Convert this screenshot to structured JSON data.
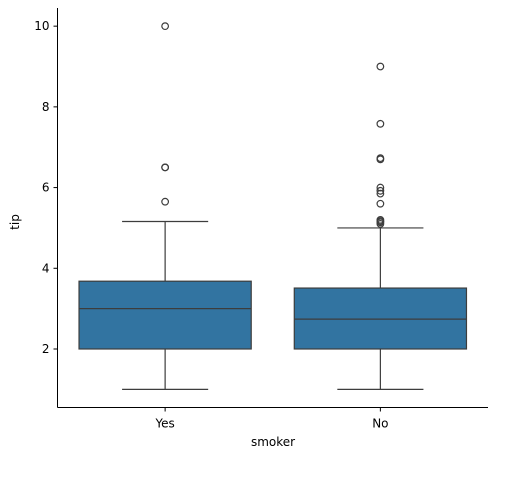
{
  "chart_data": {
    "type": "boxplot",
    "xlabel": "smoker",
    "ylabel": "tip",
    "categories": [
      "Yes",
      "No"
    ],
    "ylim": [
      0.55,
      10.45
    ],
    "yticks": [
      2,
      4,
      6,
      8,
      10
    ],
    "grid": false,
    "box_color": "#3274a1",
    "line_color": "#3d3d3d",
    "boxes": [
      {
        "category": "Yes",
        "whisker_low": 1.0,
        "q1": 2.0,
        "median": 3.0,
        "q3": 3.68,
        "whisker_high": 5.16,
        "outliers": [
          10.0,
          6.5,
          6.5,
          5.65
        ]
      },
      {
        "category": "No",
        "whisker_low": 1.0,
        "q1": 2.0,
        "median": 2.74,
        "q3": 3.51,
        "whisker_high": 5.0,
        "outliers": [
          9.0,
          7.58,
          6.73,
          6.7,
          6.0,
          5.92,
          5.85,
          5.6,
          5.2,
          5.17,
          5.14,
          5.1
        ]
      }
    ]
  }
}
